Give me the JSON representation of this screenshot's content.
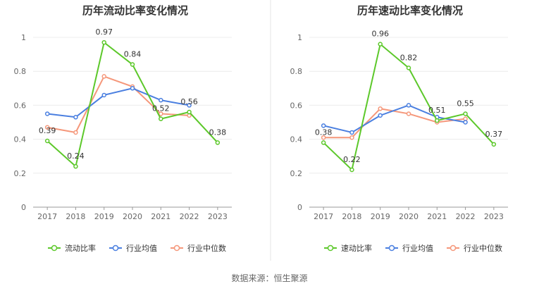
{
  "divider_color": "#e6e6e6",
  "source": "数据来源：恒生聚源",
  "chart_data": [
    {
      "type": "line",
      "title": "历年流动比率变化情况",
      "categories": [
        "2017",
        "2018",
        "2019",
        "2020",
        "2021",
        "2022",
        "2023"
      ],
      "ylim": [
        0,
        1
      ],
      "yticks": [
        "0",
        "0.2",
        "0.4",
        "0.6",
        "0.8",
        "1"
      ],
      "grid": true,
      "legend_position": "bottom",
      "series": [
        {
          "name": "流动比率",
          "color": "#5cc82a",
          "values": [
            0.39,
            0.24,
            0.97,
            0.84,
            0.52,
            0.56,
            0.38
          ],
          "labels": [
            "0.39",
            "0.24",
            "0.97",
            "0.84",
            "0.52",
            "0.56",
            "0.38"
          ]
        },
        {
          "name": "行业均值",
          "color": "#4a7fe0",
          "values": [
            0.55,
            0.53,
            0.66,
            0.7,
            0.63,
            0.6,
            null
          ]
        },
        {
          "name": "行业中位数",
          "color": "#f5977a",
          "values": [
            0.47,
            0.44,
            0.77,
            0.71,
            0.55,
            0.54,
            null
          ]
        }
      ]
    },
    {
      "type": "line",
      "title": "历年速动比率变化情况",
      "categories": [
        "2017",
        "2018",
        "2019",
        "2020",
        "2021",
        "2022",
        "2023"
      ],
      "ylim": [
        0,
        1
      ],
      "yticks": [
        "0",
        "0.2",
        "0.4",
        "0.6",
        "0.8",
        "1"
      ],
      "grid": true,
      "legend_position": "bottom",
      "series": [
        {
          "name": "速动比率",
          "color": "#5cc82a",
          "values": [
            0.38,
            0.22,
            0.96,
            0.82,
            0.51,
            0.55,
            0.37
          ],
          "labels": [
            "0.38",
            "0.22",
            "0.96",
            "0.82",
            "0.51",
            "0.55",
            "0.37"
          ]
        },
        {
          "name": "行业均值",
          "color": "#4a7fe0",
          "values": [
            0.48,
            0.44,
            0.54,
            0.6,
            0.53,
            0.5,
            null
          ]
        },
        {
          "name": "行业中位数",
          "color": "#f5977a",
          "values": [
            0.41,
            0.41,
            0.58,
            0.55,
            0.5,
            0.52,
            null
          ]
        }
      ]
    }
  ]
}
